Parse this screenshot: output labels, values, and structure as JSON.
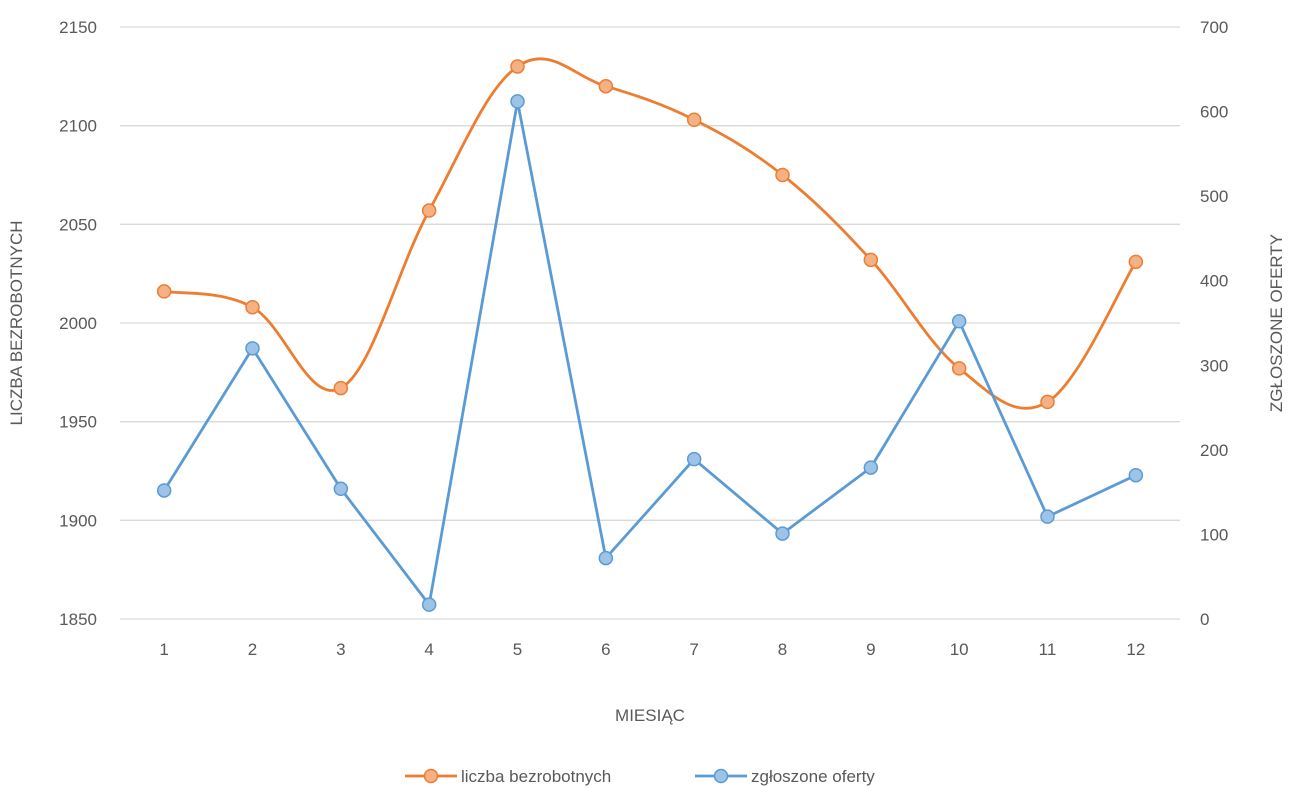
{
  "chart_data": {
    "type": "line",
    "x": [
      1,
      2,
      3,
      4,
      5,
      6,
      7,
      8,
      9,
      10,
      11,
      12
    ],
    "xlabel": "MIESIĄC",
    "ylabel": "LICZBA BEZROBOTNYCH",
    "y2label": "ZGŁOSZONE OFERTY",
    "ylim": [
      1850,
      2150
    ],
    "yticks": [
      1850,
      1900,
      1950,
      2000,
      2050,
      2100,
      2150
    ],
    "y2lim": [
      0,
      700
    ],
    "y2ticks": [
      0,
      100,
      200,
      300,
      400,
      500,
      600,
      700
    ],
    "grid": true,
    "legend": "bottom",
    "series": [
      {
        "name": "liczba bezrobotnych",
        "axis": "left",
        "color": "#ED7D31",
        "marker_fill": "#F4B183",
        "values": [
          2016,
          2008,
          1967,
          2057,
          2130,
          2120,
          2103,
          2075,
          2032,
          1977,
          1960,
          2031
        ]
      },
      {
        "name": "zgłoszone oferty",
        "axis": "right",
        "color": "#5B9BD5",
        "marker_fill": "#9DC3E6",
        "values": [
          152,
          320,
          154,
          17,
          612,
          72,
          189,
          101,
          179,
          352,
          121,
          170
        ]
      }
    ]
  }
}
